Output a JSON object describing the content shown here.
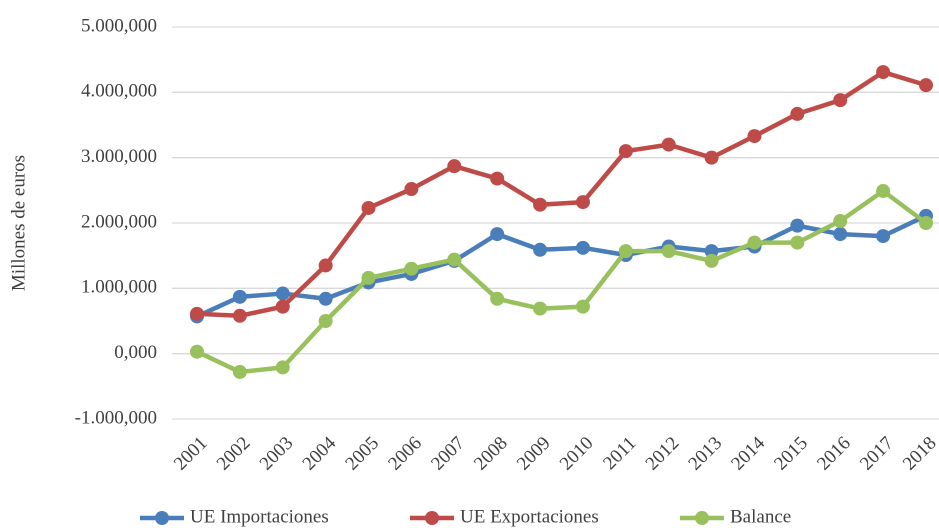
{
  "chart_data": {
    "type": "line",
    "y_label": "Millones de euros",
    "categories": [
      "2001",
      "2002",
      "2003",
      "2004",
      "2005",
      "2006",
      "2007",
      "2008",
      "2009",
      "2010",
      "2011",
      "2012",
      "2013",
      "2014",
      "2015",
      "2016",
      "2017",
      "2018"
    ],
    "series": [
      {
        "name": "UE Importaciones",
        "color": "#4a7ebb",
        "values": [
          570000,
          870000,
          920000,
          840000,
          1090000,
          1220000,
          1420000,
          1830000,
          1590000,
          1620000,
          1510000,
          1640000,
          1570000,
          1640000,
          1960000,
          1830000,
          1800000,
          2110000
        ]
      },
      {
        "name": "UE Exportaciones",
        "color": "#be4b48",
        "values": [
          610000,
          580000,
          720000,
          1350000,
          2230000,
          2520000,
          2870000,
          2680000,
          2280000,
          2320000,
          3100000,
          3200000,
          3000000,
          3330000,
          3670000,
          3880000,
          4310000,
          4110000
        ]
      },
      {
        "name": "Balance",
        "color": "#98c05c",
        "values": [
          30000,
          -280000,
          -210000,
          500000,
          1160000,
          1300000,
          1440000,
          840000,
          690000,
          720000,
          1570000,
          1570000,
          1420000,
          1700000,
          1700000,
          2030000,
          2490000,
          2000000
        ]
      }
    ],
    "ylim": [
      -1000000,
      5000000
    ],
    "yticks": [
      {
        "value": -1000000,
        "label": "-1.000,000"
      },
      {
        "value": 0,
        "label": "0,000"
      },
      {
        "value": 1000000,
        "label": "1.000,000"
      },
      {
        "value": 2000000,
        "label": "2.000,000"
      },
      {
        "value": 3000000,
        "label": "3.000,000"
      },
      {
        "value": 4000000,
        "label": "4.000,000"
      },
      {
        "value": 5000000,
        "label": "5.000,000"
      }
    ],
    "grid": true,
    "legend": "bottom"
  }
}
